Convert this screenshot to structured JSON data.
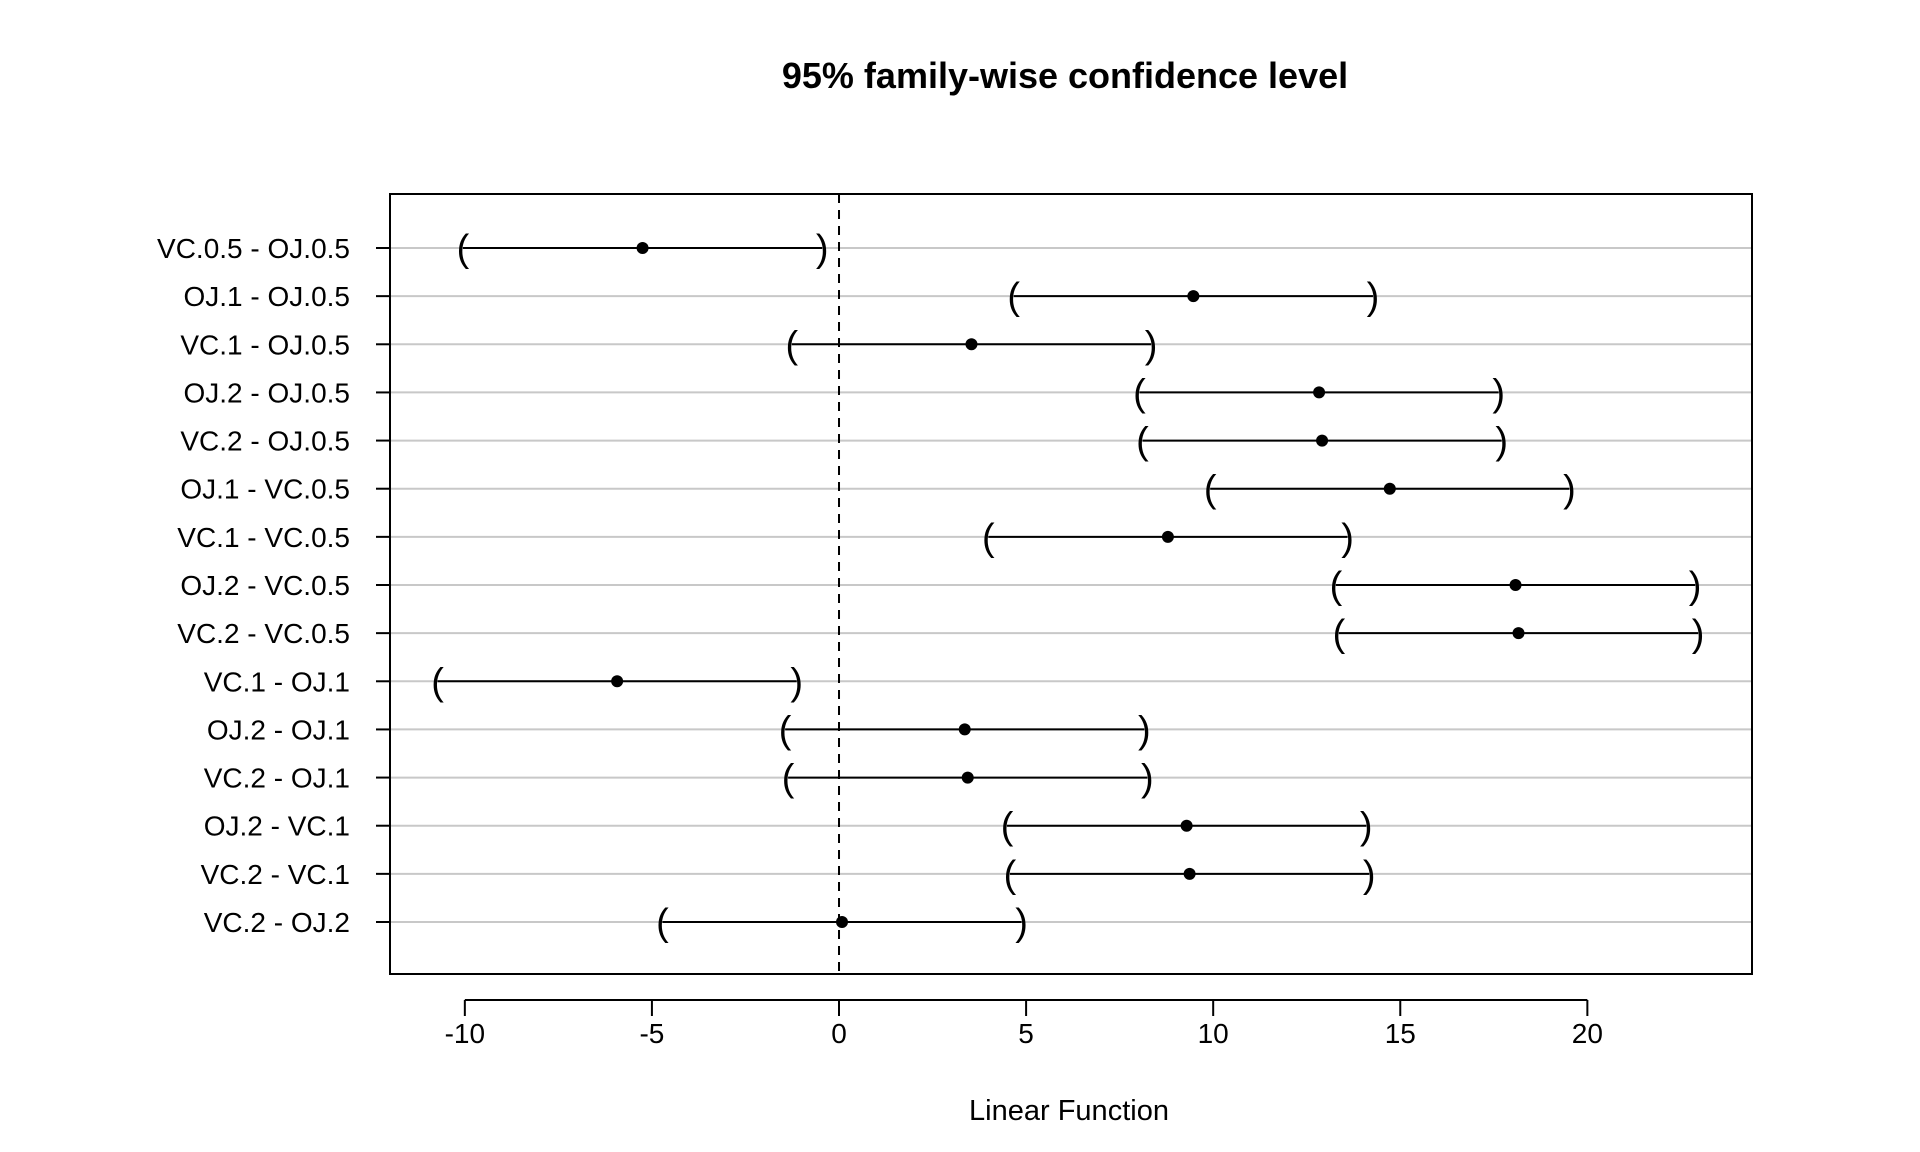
{
  "chart_data": {
    "type": "interval",
    "title": "95% family-wise confidence level",
    "xlabel": "Linear Function",
    "ylabel": "",
    "xlim": [
      -12,
      24.4
    ],
    "xticks": [
      -10,
      -5,
      0,
      5,
      10,
      15,
      20
    ],
    "xtick_labels": [
      "-10",
      "-5",
      "0",
      "5",
      "10",
      "15",
      "20"
    ],
    "reference_line_x": 0,
    "grid": "horizontal",
    "comparisons": [
      {
        "label": "VC.0.5 - OJ.0.5",
        "estimate": -5.25,
        "lower": -10.05,
        "upper": -0.45
      },
      {
        "label": "OJ.1 - OJ.0.5",
        "estimate": 9.47,
        "lower": 4.67,
        "upper": 14.27
      },
      {
        "label": "VC.1 - OJ.0.5",
        "estimate": 3.54,
        "lower": -1.26,
        "upper": 8.34
      },
      {
        "label": "OJ.2 - OJ.0.5",
        "estimate": 12.83,
        "lower": 8.03,
        "upper": 17.63
      },
      {
        "label": "VC.2 - OJ.0.5",
        "estimate": 12.91,
        "lower": 8.11,
        "upper": 17.71
      },
      {
        "label": "OJ.1 - VC.0.5",
        "estimate": 14.72,
        "lower": 9.92,
        "upper": 19.52
      },
      {
        "label": "VC.1 - VC.0.5",
        "estimate": 8.79,
        "lower": 3.99,
        "upper": 13.59
      },
      {
        "label": "OJ.2 - VC.0.5",
        "estimate": 18.08,
        "lower": 13.28,
        "upper": 22.88
      },
      {
        "label": "VC.2 - VC.0.5",
        "estimate": 18.16,
        "lower": 13.36,
        "upper": 22.96
      },
      {
        "label": "VC.1 - OJ.1",
        "estimate": -5.93,
        "lower": -10.73,
        "upper": -1.13
      },
      {
        "label": "OJ.2 - OJ.1",
        "estimate": 3.36,
        "lower": -1.44,
        "upper": 8.16
      },
      {
        "label": "VC.2 - OJ.1",
        "estimate": 3.44,
        "lower": -1.36,
        "upper": 8.24
      },
      {
        "label": "OJ.2 - VC.1",
        "estimate": 9.29,
        "lower": 4.49,
        "upper": 14.09
      },
      {
        "label": "VC.2 - VC.1",
        "estimate": 9.37,
        "lower": 4.57,
        "upper": 14.17
      },
      {
        "label": "VC.2 - OJ.2",
        "estimate": 0.08,
        "lower": -4.72,
        "upper": 4.88
      }
    ]
  }
}
